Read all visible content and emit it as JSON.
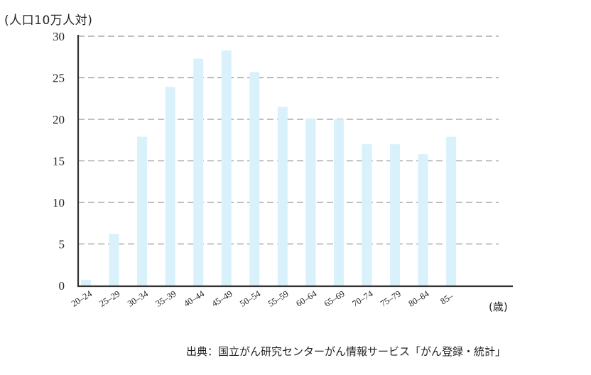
{
  "chart_data": {
    "type": "bar",
    "y_unit_label": "(人口10万人対)",
    "x_unit_label": "(歳)",
    "source_note": "出典：国立がん研究センターがん情報サービス「がん登録・統計」",
    "categories": [
      "20–24",
      "25–29",
      "30–34",
      "35–39",
      "40–44",
      "45–49",
      "50–54",
      "55–59",
      "60–64",
      "65–69",
      "70–74",
      "75–79",
      "80–84",
      "85–"
    ],
    "values": [
      0.7,
      6.2,
      17.9,
      23.9,
      27.3,
      28.3,
      25.7,
      21.5,
      20.1,
      20.0,
      17.0,
      17.0,
      15.8,
      17.9
    ],
    "yticks": [
      0,
      5,
      10,
      15,
      20,
      25,
      30
    ],
    "ylim": [
      0,
      30
    ],
    "grid": true,
    "grid_style": "dashed",
    "bar_color": "#d9f1fb",
    "axis_color": "#333333",
    "grid_color": "#999999"
  }
}
